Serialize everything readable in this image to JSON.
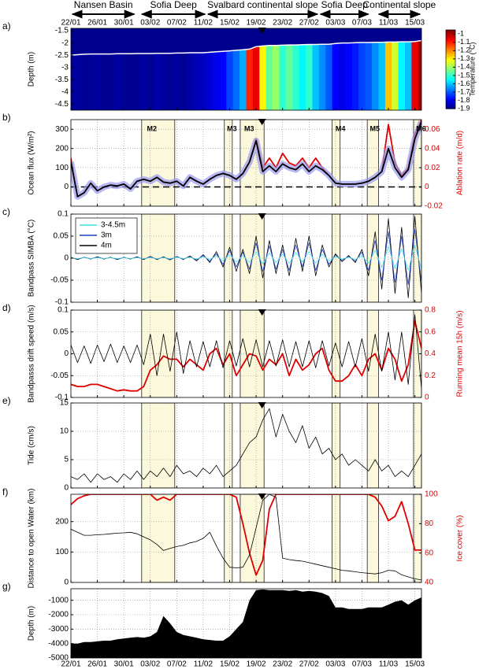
{
  "regions": [
    {
      "label": "Nansen Basin",
      "start": 0,
      "end": 9.8
    },
    {
      "label": "Sofia Deep",
      "start": 10.5,
      "end": 20.5
    },
    {
      "label": "Svalbard continental slope",
      "start": 20.5,
      "end": 37.5
    },
    {
      "label": "Sofia Deep",
      "start": 37.5,
      "end": 45.2
    },
    {
      "label": "Continental slope",
      "start": 46.3,
      "end": 53
    }
  ],
  "time_axis": {
    "xlim": [
      0,
      53
    ],
    "xticks": [
      {
        "value": 0,
        "label": "22/01"
      },
      {
        "value": 4,
        "label": "26/01"
      },
      {
        "value": 8,
        "label": "30/01"
      },
      {
        "value": 12,
        "label": "03/02"
      },
      {
        "value": 16,
        "label": "07/02"
      },
      {
        "value": 20,
        "label": "11/02"
      },
      {
        "value": 24,
        "label": "15/02"
      },
      {
        "value": 28,
        "label": "19/02"
      },
      {
        "value": 32,
        "label": "23/02"
      },
      {
        "value": 36,
        "label": "27/02"
      },
      {
        "value": 40,
        "label": "03/03"
      },
      {
        "value": 44,
        "label": "07/03"
      },
      {
        "value": 48,
        "label": "11/03"
      },
      {
        "value": 52,
        "label": "15/03"
      }
    ],
    "x": [
      0,
      1,
      2,
      3,
      4,
      5,
      6,
      7,
      8,
      9,
      10,
      11,
      12,
      13,
      14,
      15,
      16,
      17,
      18,
      19,
      20,
      21,
      22,
      23,
      24,
      25,
      26,
      27,
      28,
      29,
      30,
      31,
      32,
      33,
      34,
      35,
      36,
      37,
      38,
      39,
      40,
      41,
      42,
      43,
      44,
      45,
      46,
      47,
      48,
      49,
      50,
      51,
      52,
      53
    ]
  },
  "marker_x": 28.9,
  "bands": [
    [
      10.7,
      15.7
    ],
    [
      23.2,
      24.4
    ],
    [
      25.6,
      29.2
    ],
    [
      39.5,
      40.7
    ],
    [
      44.8,
      46.5
    ],
    [
      51.8,
      53
    ]
  ],
  "chart_data": [
    {
      "type": "heatmap",
      "panel_label": "a)",
      "ylabel": "Depth (m)",
      "ylim": [
        -4.75,
        -1.4
      ],
      "yticks": [
        -1.5,
        -2,
        -2.5,
        -3,
        -3.5,
        -4,
        -4.5
      ],
      "xtick_labels": "top",
      "marker": true,
      "interface_color": "#ffffff",
      "interface": [
        -2.5,
        -2.48,
        -2.46,
        -2.45,
        -2.45,
        -2.45,
        -2.45,
        -2.44,
        -2.44,
        -2.44,
        -2.43,
        -2.43,
        -2.43,
        -2.42,
        -2.42,
        -2.42,
        -2.41,
        -2.41,
        -2.4,
        -2.4,
        -2.4,
        -2.38,
        -2.36,
        -2.34,
        -2.32,
        -2.3,
        -2.28,
        -2.25,
        -2.15,
        -2.12,
        -2.1,
        -2.1,
        -2.09,
        -2.08,
        -2.08,
        -2.07,
        -2.06,
        -2.06,
        -2.05,
        -2.05,
        -2.02,
        -2.0,
        -2.0,
        -1.99,
        -1.98,
        -1.98,
        -1.97,
        -1.97,
        -1.96,
        -1.96,
        -1.95,
        -1.95,
        -1.94,
        -1.9
      ],
      "values": [
        -1.88,
        -1.87,
        -1.88,
        -1.88,
        -1.87,
        -1.88,
        -1.88,
        -1.87,
        -1.88,
        -1.88,
        -1.88,
        -1.87,
        -1.88,
        -1.86,
        -1.87,
        -1.88,
        -1.87,
        -1.88,
        -1.86,
        -1.85,
        -1.84,
        -1.82,
        -1.8,
        -1.78,
        -1.72,
        -1.68,
        -1.62,
        -1.1,
        -1.05,
        -1.3,
        -1.45,
        -1.4,
        -1.5,
        -1.45,
        -1.5,
        -1.55,
        -1.5,
        -1.6,
        -1.65,
        -1.7,
        -1.78,
        -1.8,
        -1.78,
        -1.76,
        -1.72,
        -1.7,
        -1.65,
        -1.6,
        -1.25,
        -1.35,
        -1.55,
        -1.6,
        -1.05,
        -0.98
      ],
      "colorbar": {
        "label": "Temperature (°C)",
        "clim": [
          -1.9,
          -0.95
        ],
        "ticks": [
          -1,
          -1.1,
          -1.2,
          -1.3,
          -1.4,
          -1.5,
          -1.6,
          -1.7,
          -1.8,
          -1.9
        ]
      }
    },
    {
      "type": "line",
      "panel_label": "b)",
      "ylabel": "Ocean flux (W/m²)",
      "y2label": "Ablation rate (m/d)",
      "ylim": [
        -100,
        350
      ],
      "yticks": [
        0,
        100,
        200,
        300
      ],
      "y2lim": [
        -0.02,
        0.07
      ],
      "y2ticks": [
        -0.02,
        0,
        0.02,
        0.04,
        0.06
      ],
      "y2color": "#e00000",
      "grid": true,
      "bands": true,
      "marker": true,
      "zero_line": true,
      "annotations": [
        {
          "text": "M2",
          "x": 11.5
        },
        {
          "text": "M3",
          "x": 23.6
        },
        {
          "text": "M3",
          "x": 26.2
        },
        {
          "text": "M4",
          "x": 40.0
        },
        {
          "text": "M5",
          "x": 45.2
        },
        {
          "text": "M6",
          "x": 52.2
        }
      ],
      "series": [
        {
          "color": "#000000",
          "halo": "#9a9af0",
          "values": [
            130,
            -50,
            -30,
            20,
            -20,
            0,
            10,
            5,
            15,
            -10,
            30,
            40,
            30,
            50,
            25,
            20,
            30,
            5,
            50,
            30,
            15,
            40,
            60,
            70,
            60,
            40,
            70,
            130,
            240,
            80,
            110,
            80,
            120,
            100,
            90,
            120,
            80,
            110,
            90,
            60,
            20,
            15,
            15,
            15,
            20,
            30,
            50,
            80,
            200,
            100,
            50,
            90,
            250,
            340
          ]
        },
        {
          "color": "#e00000",
          "axis": "y2",
          "values": [
            0.03,
            -0.01,
            -0.006,
            0.004,
            -0.004,
            0,
            0.002,
            0.001,
            0.003,
            -0.002,
            0.006,
            0.008,
            0.006,
            0.01,
            0.005,
            0.004,
            0.006,
            0.001,
            0.01,
            0.006,
            0.003,
            0.008,
            0.012,
            0.014,
            0.012,
            0.008,
            0.014,
            0.026,
            0.05,
            0.02,
            0.03,
            0.02,
            0.035,
            0.025,
            0.022,
            0.03,
            0.02,
            0.03,
            0.02,
            0.012,
            0.004,
            0.003,
            0.003,
            0.003,
            0.004,
            0.006,
            0.01,
            0.016,
            0.065,
            0.025,
            0.012,
            0.02,
            0.055,
            0.07
          ]
        }
      ]
    },
    {
      "type": "line",
      "panel_label": "c)",
      "ylabel": "Bandpass SIMBA (°C)",
      "ylim": [
        -0.1,
        0.1
      ],
      "yticks": [
        -0.1,
        -0.05,
        0,
        0.05,
        0.1
      ],
      "grid": true,
      "bands": true,
      "marker": true,
      "legend": "upper left",
      "series": [
        {
          "name": "3-4.5m",
          "color": "#40e0e0",
          "values": [
            0.001,
            -0.001,
            0.001,
            -0.001,
            0.001,
            -0.001,
            0.001,
            -0.001,
            0.001,
            -0.001,
            0.001,
            -0.001,
            0.001,
            -0.001,
            0.001,
            -0.001,
            0.002,
            -0.001,
            0.002,
            -0.002,
            0.003,
            -0.003,
            0.005,
            -0.006,
            0.008,
            -0.009,
            0.006,
            -0.01,
            0.015,
            -0.013,
            0.012,
            -0.01,
            0.009,
            -0.012,
            0.013,
            -0.009,
            0.015,
            -0.012,
            0.009,
            -0.006,
            0.003,
            -0.002,
            0.002,
            -0.003,
            0.006,
            -0.012,
            0.018,
            -0.021,
            0.027,
            -0.024,
            0.021,
            -0.027,
            0.028,
            -0.024
          ]
        },
        {
          "name": "3m",
          "color": "#1f3fbf",
          "values": [
            0.001,
            -0.002,
            0.002,
            -0.001,
            0.002,
            -0.001,
            0.001,
            -0.002,
            0.001,
            -0.001,
            0.002,
            -0.002,
            0.003,
            -0.002,
            0.002,
            -0.003,
            0.003,
            -0.002,
            0.003,
            -0.004,
            0.006,
            -0.007,
            0.01,
            -0.014,
            0.018,
            -0.02,
            0.014,
            -0.025,
            0.035,
            -0.03,
            0.028,
            -0.025,
            0.02,
            -0.028,
            0.03,
            -0.02,
            0.035,
            -0.028,
            0.02,
            -0.014,
            0.007,
            -0.005,
            0.004,
            -0.007,
            0.014,
            -0.028,
            0.04,
            -0.05,
            0.06,
            -0.055,
            0.05,
            -0.06,
            0.065,
            -0.055
          ]
        },
        {
          "name": "4m",
          "color": "#000000",
          "values": [
            0.002,
            -0.003,
            0.002,
            -0.002,
            0.003,
            -0.002,
            0.002,
            -0.003,
            0.002,
            -0.002,
            0.003,
            -0.003,
            0.004,
            -0.003,
            0.003,
            -0.004,
            0.004,
            -0.003,
            0.005,
            -0.006,
            0.008,
            -0.01,
            0.015,
            -0.02,
            0.025,
            -0.03,
            0.02,
            -0.035,
            0.05,
            -0.045,
            0.04,
            -0.035,
            0.03,
            -0.04,
            0.045,
            -0.03,
            0.05,
            -0.04,
            0.03,
            -0.02,
            0.01,
            -0.008,
            0.006,
            -0.01,
            0.02,
            -0.04,
            0.06,
            -0.07,
            0.09,
            -0.08,
            0.07,
            -0.09,
            0.095,
            -0.08
          ]
        }
      ]
    },
    {
      "type": "line",
      "panel_label": "d)",
      "ylabel": "Bandpasss drift speed (m/s)",
      "y2label": "Running mean 15h (m/s)",
      "ylim": [
        -0.1,
        0.1
      ],
      "yticks": [
        -0.1,
        -0.05,
        0,
        0.05,
        0.1
      ],
      "y2lim": [
        0,
        0.8
      ],
      "y2ticks": [
        0,
        0.2,
        0.4,
        0.6,
        0.8
      ],
      "y2color": "#e00000",
      "grid": true,
      "bands": true,
      "marker": true,
      "series": [
        {
          "color": "#000000",
          "values": [
            0.02,
            -0.02,
            0.018,
            -0.022,
            0.02,
            -0.018,
            0.022,
            -0.02,
            0.018,
            -0.02,
            0.02,
            -0.025,
            0.045,
            -0.05,
            0.045,
            -0.04,
            0.05,
            -0.045,
            0.03,
            -0.03,
            0.028,
            -0.03,
            0.03,
            -0.032,
            0.03,
            -0.028,
            0.035,
            -0.03,
            0.032,
            -0.03,
            0.03,
            -0.028,
            0.032,
            -0.03,
            0.028,
            -0.03,
            0.03,
            -0.032,
            0.03,
            -0.028,
            0.025,
            -0.03,
            0.028,
            -0.03,
            0.035,
            -0.04,
            0.045,
            -0.04,
            0.05,
            -0.06,
            0.05,
            -0.07,
            0.09,
            -0.08
          ]
        },
        {
          "color": "#e00000",
          "axis": "y2",
          "values": [
            0.12,
            0.1,
            0.1,
            0.12,
            0.12,
            0.1,
            0.08,
            0.06,
            0.07,
            0.06,
            0.06,
            0.1,
            0.25,
            0.3,
            0.38,
            0.35,
            0.35,
            0.28,
            0.35,
            0.3,
            0.25,
            0.4,
            0.45,
            0.3,
            0.4,
            0.2,
            0.3,
            0.4,
            0.38,
            0.25,
            0.35,
            0.3,
            0.4,
            0.2,
            0.35,
            0.25,
            0.3,
            0.4,
            0.45,
            0.25,
            0.15,
            0.15,
            0.2,
            0.3,
            0.2,
            0.35,
            0.4,
            0.25,
            0.45,
            0.35,
            0.15,
            0.3,
            0.7,
            0.45
          ]
        }
      ]
    },
    {
      "type": "line",
      "panel_label": "e)",
      "ylabel": "Tide (cm/s)",
      "ylim": [
        0,
        15
      ],
      "yticks": [
        0,
        5,
        10,
        15
      ],
      "grid": true,
      "bands": true,
      "marker": true,
      "series": [
        {
          "color": "#000000",
          "values": [
            2,
            1.5,
            2.5,
            1,
            2.5,
            1.5,
            2,
            1,
            2.5,
            1.5,
            3,
            1.5,
            3,
            2,
            3.5,
            2,
            4,
            2.5,
            3,
            2,
            3.5,
            2.5,
            4,
            2,
            3,
            4,
            6,
            8,
            9,
            12,
            14,
            9,
            13,
            10,
            8,
            11,
            7,
            9,
            6,
            7,
            5,
            6,
            4,
            5,
            4,
            3,
            5,
            3,
            4,
            2,
            3,
            2,
            4,
            6
          ]
        }
      ]
    },
    {
      "type": "line",
      "panel_label": "f)",
      "ylabel": "Distance to open Water (km)",
      "y2label": "Ice cover (%)",
      "ylim": [
        0,
        290
      ],
      "yticks": [
        0,
        100,
        200
      ],
      "y2lim": [
        40,
        100
      ],
      "y2ticks": [
        40,
        60,
        80,
        100
      ],
      "y2color": "#e00000",
      "grid": true,
      "bands": true,
      "marker": true,
      "series": [
        {
          "color": "#000000",
          "values": [
            175,
            165,
            155,
            155,
            157,
            158,
            160,
            162,
            163,
            165,
            160,
            150,
            140,
            125,
            105,
            112,
            118,
            122,
            130,
            135,
            145,
            165,
            120,
            80,
            50,
            48,
            50,
            90,
            180,
            270,
            290,
            280,
            80,
            75,
            72,
            70,
            65,
            60,
            55,
            50,
            45,
            40,
            38,
            35,
            32,
            30,
            28,
            32,
            40,
            38,
            25,
            18,
            12,
            8
          ]
        },
        {
          "color": "#e00000",
          "axis": "y2",
          "values": [
            93,
            97,
            99,
            100,
            100,
            100,
            100,
            100,
            100,
            100,
            100,
            100,
            100,
            96,
            98,
            96,
            100,
            100,
            100,
            100,
            100,
            100,
            100,
            100,
            100,
            98,
            80,
            60,
            45,
            55,
            90,
            100,
            100,
            100,
            100,
            100,
            100,
            100,
            100,
            100,
            100,
            100,
            100,
            100,
            100,
            100,
            98,
            92,
            82,
            85,
            95,
            80,
            62,
            62
          ]
        }
      ]
    },
    {
      "type": "area",
      "panel_label": "g)",
      "ylabel": "Depth (m)",
      "ylim": [
        -5000,
        -200
      ],
      "yticks": [
        -5000,
        -4000,
        -3000,
        -2000,
        -1000
      ],
      "grid": true,
      "xtick_labels": "bottom",
      "color": "#000000",
      "values": [
        -4000,
        -4000,
        -3900,
        -3900,
        -3850,
        -3800,
        -3800,
        -3700,
        -3650,
        -3600,
        -3550,
        -3600,
        -3500,
        -3200,
        -2100,
        -2600,
        -3200,
        -3400,
        -3500,
        -3600,
        -3700,
        -3750,
        -3800,
        -3800,
        -3500,
        -3000,
        -2500,
        -1000,
        -300,
        -250,
        -300,
        -300,
        -300,
        -350,
        -300,
        -400,
        -350,
        -400,
        -500,
        -700,
        -1500,
        -1500,
        -1600,
        -1600,
        -1600,
        -1500,
        -1500,
        -1500,
        -1300,
        -1100,
        -1000,
        -1300,
        -1000,
        -800
      ]
    }
  ]
}
